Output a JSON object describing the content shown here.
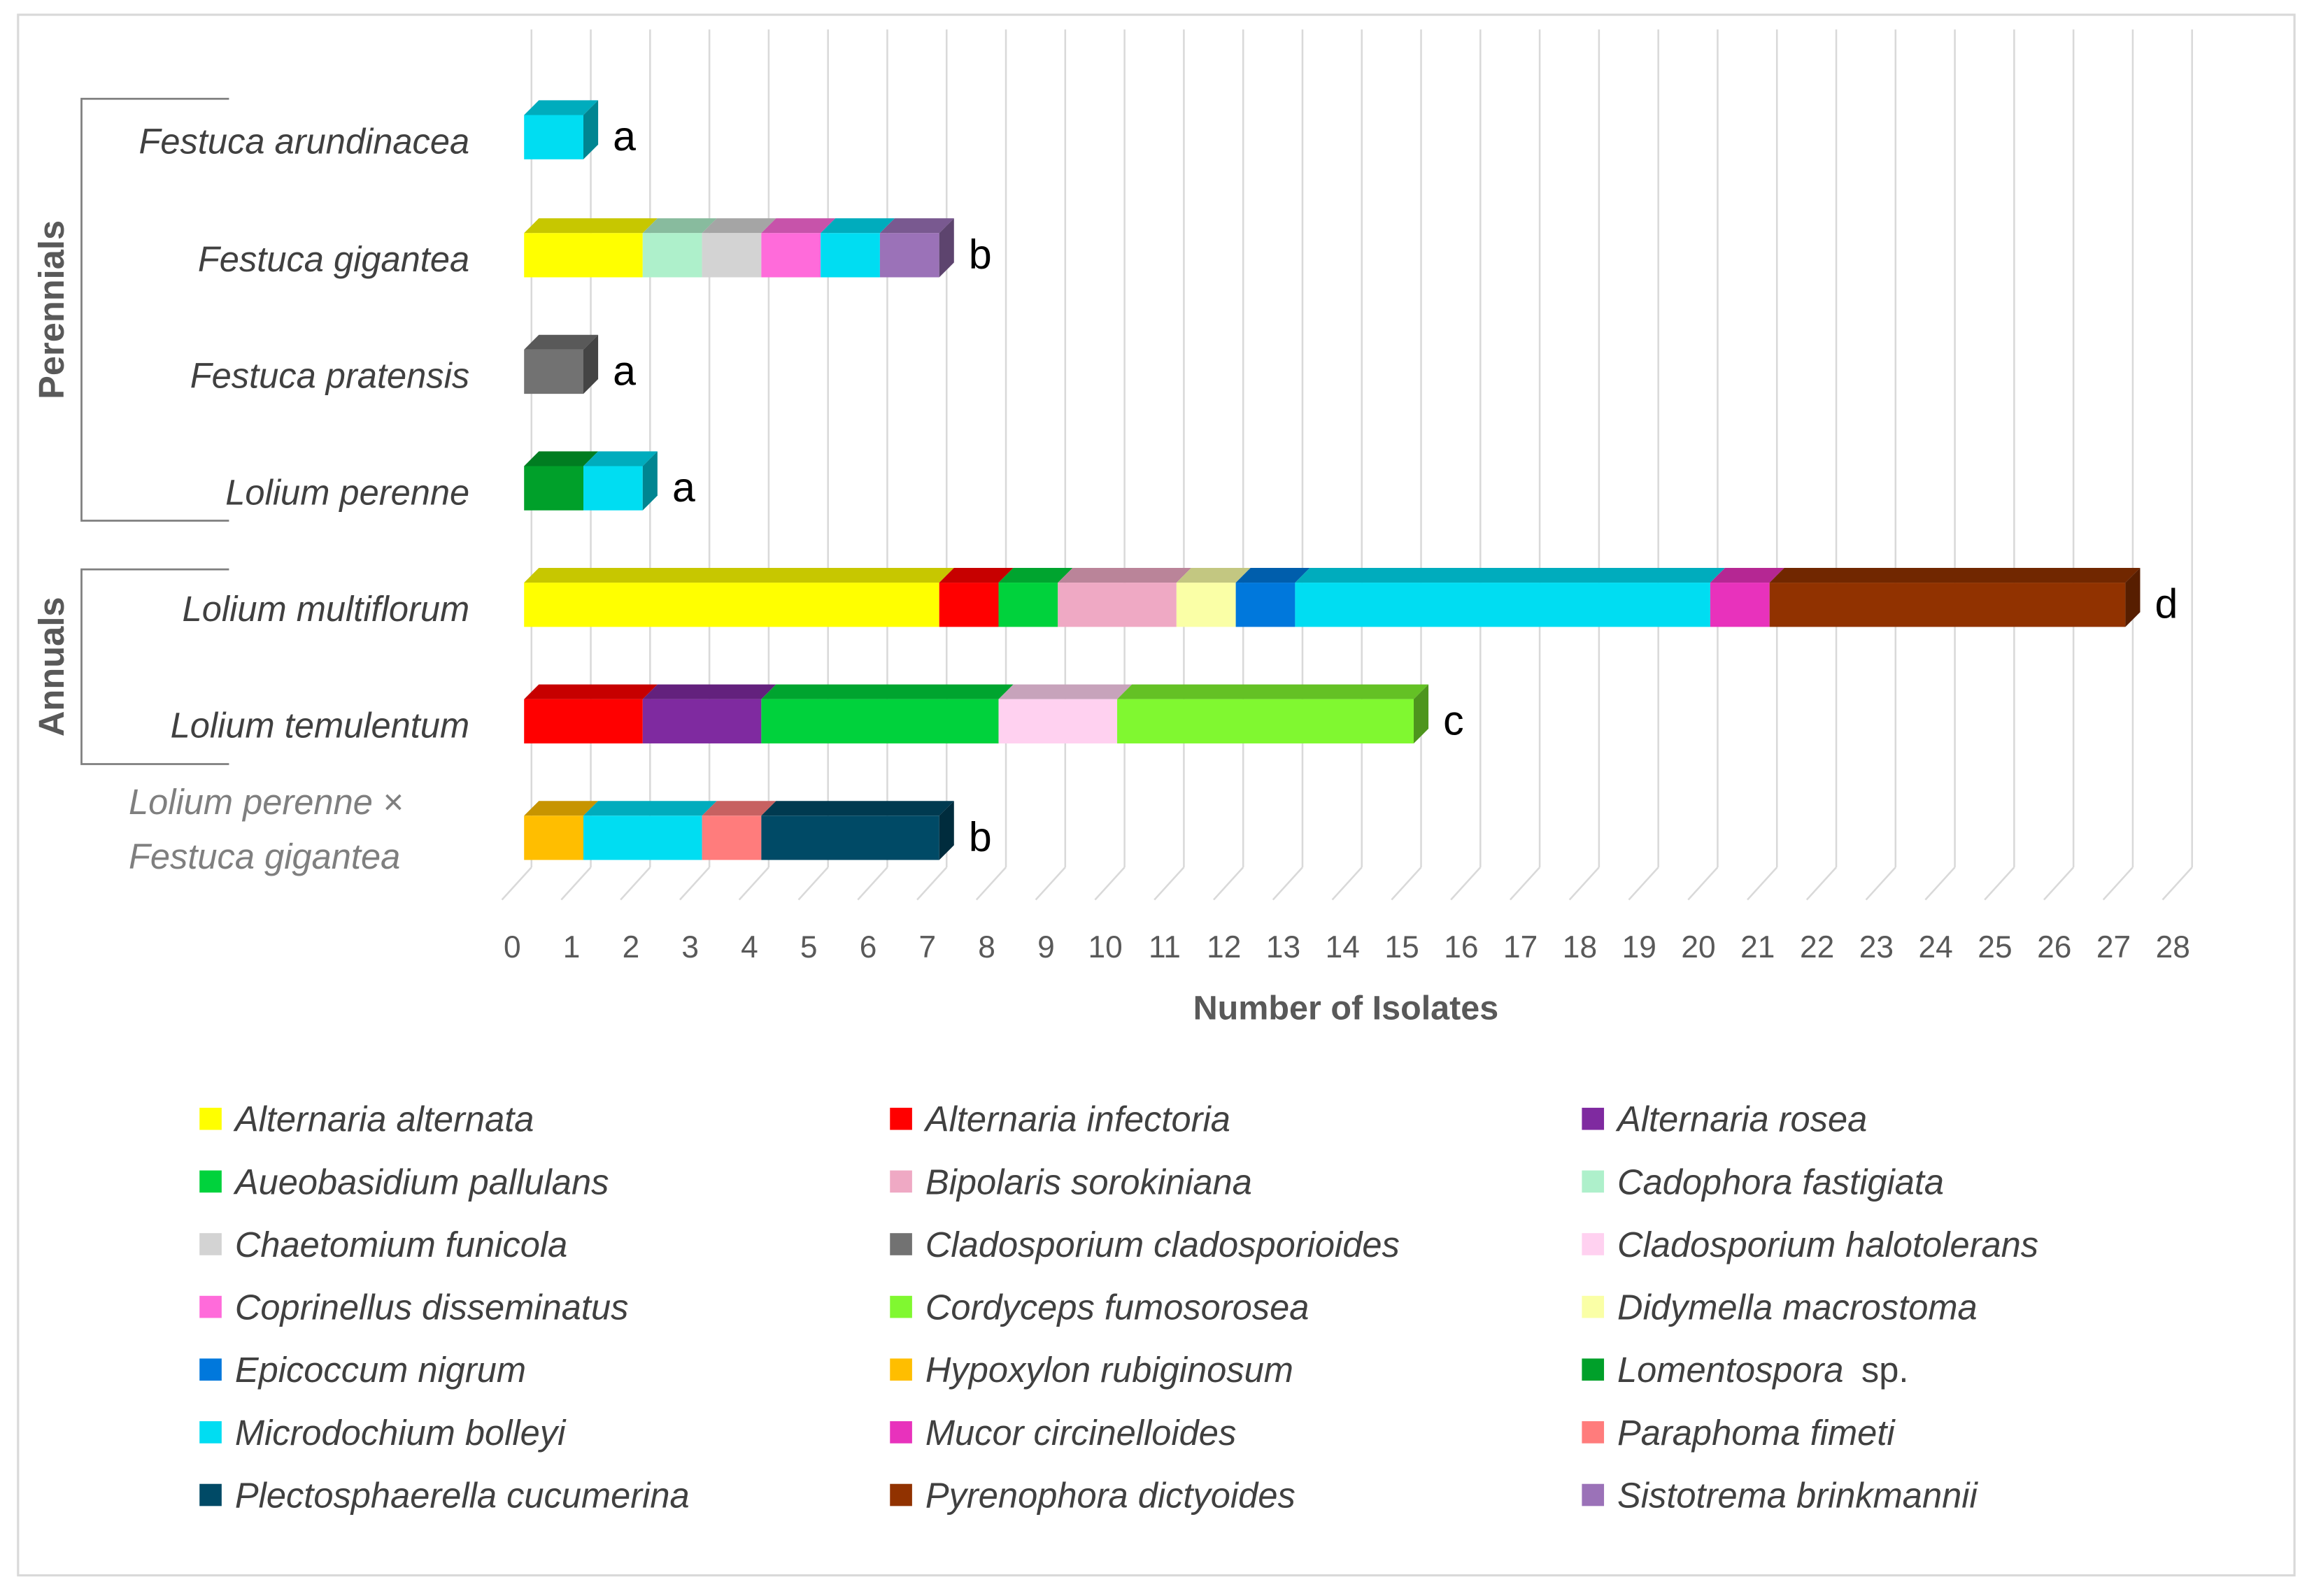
{
  "chart_data": {
    "type": "bar",
    "orientation": "horizontal",
    "stacked": true,
    "xlabel": "Number of Isolates",
    "xlim": [
      0,
      28
    ],
    "xticks": [
      0,
      1,
      2,
      3,
      4,
      5,
      6,
      7,
      8,
      9,
      10,
      11,
      12,
      13,
      14,
      15,
      16,
      17,
      18,
      19,
      20,
      21,
      22,
      23,
      24,
      25,
      26,
      27,
      28
    ],
    "groups": [
      {
        "label": "Perennials",
        "categories": [
          "Festuca arundinacea",
          "Festuca gigantea",
          "Festuca pratensis",
          "Lolium perenne"
        ]
      },
      {
        "label": "Annuals",
        "categories": [
          "Lolium multiflorum",
          "Lolium temulentum"
        ]
      }
    ],
    "categories": [
      {
        "name": "Festuca arundinacea",
        "letter": "a",
        "segments": [
          [
            "Microdochium bolleyi",
            1
          ]
        ]
      },
      {
        "name": "Festuca gigantea",
        "letter": "b",
        "segments": [
          [
            "Alternaria alternata",
            2
          ],
          [
            "Cadophora fastigiata",
            1
          ],
          [
            "Chaetomium funicola",
            1
          ],
          [
            "Coprinellus disseminatus",
            1
          ],
          [
            "Microdochium bolleyi",
            1
          ],
          [
            "Sistotrema brinkmannii",
            1
          ]
        ]
      },
      {
        "name": "Festuca pratensis",
        "letter": "a",
        "segments": [
          [
            "Cladosporium cladosporioides",
            1
          ]
        ]
      },
      {
        "name": "Lolium perenne",
        "letter": "a",
        "segments": [
          [
            "Lomentospora sp.",
            1
          ],
          [
            "Microdochium bolleyi",
            1
          ]
        ]
      },
      {
        "name": "Lolium multiflorum",
        "letter": "d",
        "segments": [
          [
            "Alternaria alternata",
            7
          ],
          [
            "Alternaria infectoria",
            1
          ],
          [
            "Aueobasidium pallulans",
            1
          ],
          [
            "Bipolaris sorokiniana",
            2
          ],
          [
            "Didymella macrostoma",
            1
          ],
          [
            "Epicoccum nigrum",
            1
          ],
          [
            "Microdochium bolleyi",
            7
          ],
          [
            "Mucor circinelloides",
            1
          ],
          [
            "Pyrenophora dictyoides",
            6
          ]
        ]
      },
      {
        "name": "Lolium temulentum",
        "letter": "c",
        "segments": [
          [
            "Alternaria infectoria",
            2
          ],
          [
            "Alternaria rosea",
            2
          ],
          [
            "Aueobasidium pallulans",
            4
          ],
          [
            "Cladosporium halotolerans",
            2
          ],
          [
            "Cordyceps fumosorosea",
            5
          ]
        ]
      },
      {
        "name_lines": [
          "Lolium perenne ×",
          "Festuca gigantea"
        ],
        "letter": "b",
        "segments": [
          [
            "Hypoxylon rubiginosum",
            1
          ],
          [
            "Microdochium bolleyi",
            2
          ],
          [
            "Paraphoma fimeti",
            1
          ],
          [
            "Plectosphaerella cucumerina",
            3
          ]
        ]
      }
    ],
    "legend": [
      {
        "name": "Alternaria alternata",
        "label": "Alternaria alternata",
        "color": "#FFFF00"
      },
      {
        "name": "Alternaria infectoria",
        "label": "Alternaria infectoria",
        "color": "#FF0000"
      },
      {
        "name": "Alternaria rosea",
        "label": "Alternaria rosea",
        "color": "#7F2AA0"
      },
      {
        "name": "Aueobasidium pallulans",
        "label": "Aueobasidium pallulans",
        "color": "#00D23C"
      },
      {
        "name": "Bipolaris sorokiniana",
        "label": "Bipolaris sorokiniana",
        "color": "#EFA9C4"
      },
      {
        "name": "Cadophora fastigiata",
        "label": "Cadophora fastigiata",
        "color": "#AEF0CB"
      },
      {
        "name": "Chaetomium funicola",
        "label": "Chaetomium funicola",
        "color": "#D3D3D3"
      },
      {
        "name": "Cladosporium cladosporioides",
        "label": "Cladosporium cladosporioides",
        "color": "#727272"
      },
      {
        "name": "Cladosporium halotolerans",
        "label": "Cladosporium halotolerans",
        "color": "#FFD1F0"
      },
      {
        "name": "Coprinellus disseminatus",
        "label": "Coprinellus disseminatus",
        "color": "#FF6BDA"
      },
      {
        "name": "Cordyceps fumosorosea",
        "label": "Cordyceps fumosorosea",
        "color": "#80F830"
      },
      {
        "name": "Didymella macrostoma",
        "label": "Didymella macrostoma",
        "color": "#FAFFA6"
      },
      {
        "name": "Epicoccum nigrum",
        "label": "Epicoccum nigrum",
        "color": "#0078DC"
      },
      {
        "name": "Hypoxylon rubiginosum",
        "label": "Hypoxylon rubiginosum",
        "color": "#FFBE00"
      },
      {
        "name": "Lomentospora sp.",
        "label": "Lomentospora",
        "suffix": "sp.",
        "color": "#00A02A"
      },
      {
        "name": "Microdochium bolleyi",
        "label": "Microdochium bolleyi",
        "color": "#00DDF2"
      },
      {
        "name": "Mucor circinelloides",
        "label": "Mucor circinelloides",
        "color": "#E832BC"
      },
      {
        "name": "Paraphoma fimeti",
        "label": "Paraphoma fimeti",
        "color": "#FF7C7C"
      },
      {
        "name": "Plectosphaerella cucumerina",
        "label": "Plectosphaerella cucumerina",
        "color": "#004A66"
      },
      {
        "name": "Pyrenophora dictyoides",
        "label": "Pyrenophora dictyoides",
        "color": "#913200"
      },
      {
        "name": "Sistotrema brinkmannii",
        "label": "Sistotrema brinkmannii",
        "color": "#9B72B8"
      }
    ]
  }
}
